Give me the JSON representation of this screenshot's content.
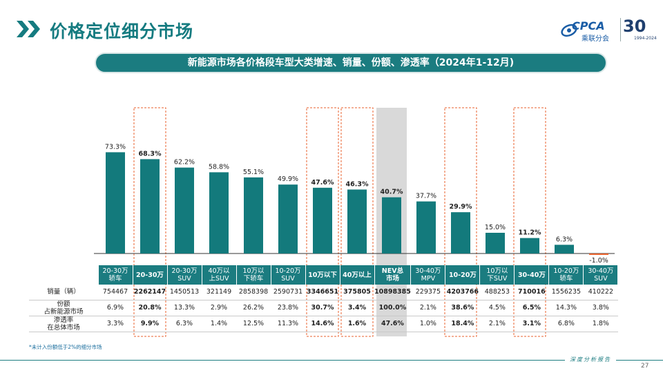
{
  "header": {
    "title": "价格定位细分市场",
    "logo_text": "CPCA",
    "logo_sub": "乘联分会",
    "anniversary": "30",
    "anniversary_sub": "1994-2024",
    "accent_color": "#157b80"
  },
  "banner": {
    "text": "新能源市场各价格段车型大类增速、销量、份额、渗透率（2024年1-12月)"
  },
  "chart_data": {
    "type": "bar",
    "categories": [
      "20-30万\n轿车",
      "20-30万",
      "20-30万\nSUV",
      "40万以\n上SUV",
      "10万以\n下轿车",
      "10-20万\nSUV",
      "10万以下",
      "40万以上",
      "NEV总\n市场",
      "30-40万\nMPV",
      "10-20万",
      "10万以\n下SUV",
      "30-40万",
      "10-20万\n轿车",
      "30-40万\nSUV"
    ],
    "values": [
      73.3,
      68.3,
      62.2,
      58.8,
      55.1,
      49.9,
      47.6,
      46.3,
      40.7,
      37.7,
      29.9,
      15.0,
      11.2,
      6.3,
      -1.0
    ],
    "value_labels": [
      "73.3%",
      "68.3%",
      "62.2%",
      "58.8%",
      "55.1%",
      "49.9%",
      "47.6%",
      "46.3%",
      "40.7%",
      "37.7%",
      "29.9%",
      "15.0%",
      "11.2%",
      "6.3%",
      "-1.0%"
    ],
    "highlight": [
      false,
      true,
      false,
      false,
      false,
      false,
      true,
      true,
      false,
      false,
      true,
      false,
      true,
      false,
      false
    ],
    "total_market_index": 8,
    "ylim": [
      -2,
      80
    ],
    "bar_color": "#137a7c",
    "negative_bar_color": "#e8622c",
    "grid": false,
    "table": {
      "rows": [
        {
          "label": "销量（辆）",
          "values": [
            "754467",
            "2262147",
            "1450513",
            "321149",
            "2858398",
            "2590731",
            "3346651",
            "375805",
            "10898385",
            "229375",
            "4203766",
            "488253",
            "710016",
            "1556235",
            "410222"
          ]
        },
        {
          "label": "份额\n占新能源市场",
          "values": [
            "6.9%",
            "20.8%",
            "13.3%",
            "2.9%",
            "26.2%",
            "23.8%",
            "30.7%",
            "3.4%",
            "100.0%",
            "2.1%",
            "38.6%",
            "4.5%",
            "6.5%",
            "14.3%",
            "3.8%"
          ]
        },
        {
          "label": "渗透率\n在总体市场",
          "values": [
            "3.3%",
            "9.9%",
            "6.3%",
            "1.4%",
            "12.5%",
            "11.3%",
            "14.6%",
            "1.6%",
            "47.6%",
            "1.0%",
            "18.4%",
            "2.1%",
            "3.1%",
            "6.8%",
            "1.8%"
          ]
        }
      ]
    }
  },
  "footnote": "*未计入份额低于2%的细分市场",
  "footer": {
    "tag": "深度分析报告",
    "page": "27"
  }
}
